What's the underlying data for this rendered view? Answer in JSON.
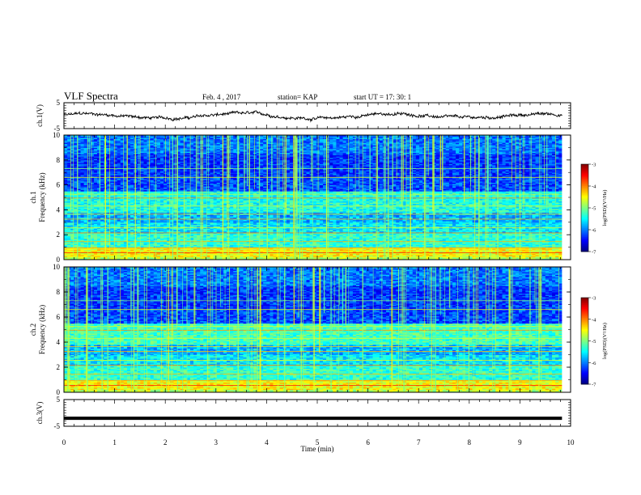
{
  "header": {
    "title": "VLF Spectra",
    "date": "Feb. 4 , 2017",
    "station": "station= KAP",
    "start_time": "start  UT =  17: 30: 1"
  },
  "chart_data": [
    {
      "type": "line",
      "name": "ch1-voltage",
      "ylabel": "ch.1(V)",
      "ylim": [
        -5,
        5
      ],
      "yticks": [
        "5",
        "-5"
      ],
      "xlim": [
        0,
        10
      ],
      "x_end": 9.83,
      "baseline": -0.2,
      "amplitude": 1.5
    },
    {
      "type": "heatmap",
      "name": "ch1-spectrogram",
      "ylabel_line1": "ch.1",
      "ylabel_line2": "Frequency (kHz)",
      "ylim": [
        0,
        10
      ],
      "yticks": [
        "0",
        "2",
        "4",
        "6",
        "8",
        "10"
      ],
      "xlim": [
        0,
        10
      ],
      "x_end": 9.83,
      "colorbar": {
        "label": "log(PSD)(V²/Hz)",
        "range": [
          -7,
          -3
        ],
        "ticks": [
          "-3",
          "-4",
          "-5",
          "-6",
          "-7"
        ]
      }
    },
    {
      "type": "heatmap",
      "name": "ch2-spectrogram",
      "ylabel_line1": "ch.2",
      "ylabel_line2": "Frequency (kHz)",
      "ylim": [
        0,
        10
      ],
      "yticks": [
        "0",
        "2",
        "4",
        "6",
        "8",
        "10"
      ],
      "xlim": [
        0,
        10
      ],
      "x_end": 9.83,
      "colorbar": {
        "label": "log(PSD)(V²/Hz)",
        "range": [
          -7,
          -3
        ],
        "ticks": [
          "-3",
          "-4",
          "-5",
          "-6",
          "-7"
        ]
      }
    },
    {
      "type": "line",
      "name": "ch3-voltage",
      "ylabel": "ch.3(V)",
      "ylim": [
        -5,
        5
      ],
      "yticks": [
        "5",
        "-5"
      ],
      "xlim": [
        0,
        10
      ],
      "x_end": 9.83,
      "level": -2.0
    }
  ],
  "xaxis": {
    "label": "Time (min)",
    "ticks": [
      "0",
      "1",
      "2",
      "3",
      "4",
      "5",
      "6",
      "7",
      "8",
      "9",
      "10"
    ]
  }
}
